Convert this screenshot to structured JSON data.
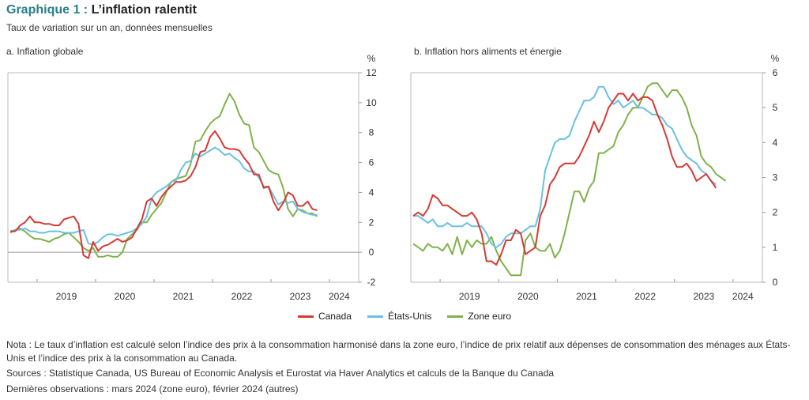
{
  "header": {
    "title_num": "Graphique 1 :",
    "title_text": " L’inflation ralentit",
    "subtitle": "Taux de variation sur un an, données mensuelles"
  },
  "legend": [
    {
      "label": "Canada",
      "color": "#d63a35"
    },
    {
      "label": "États-Unis",
      "color": "#6cc0e0"
    },
    {
      "label": "Zone euro",
      "color": "#7fb24a"
    }
  ],
  "footer": {
    "note": "Nota : Le taux d’inflation est calculé selon l’indice des prix à la consommation harmonisé dans la zone euro, l’indice de prix relatif aux dépenses de consommation des ménages aux États-Unis et l’indice des prix à la consommation au Canada.",
    "sources": "Sources : Statistique Canada, US Bureau of Economic Analysis et Eurostat via Haver Analytics et calculs de la Banque du Canada",
    "last_obs": "Dernières observations : mars 2024 (zone euro), février 2024 (autres)"
  },
  "chart_data": [
    {
      "type": "line",
      "title": "a. Inflation globale",
      "ylabel": "%",
      "ylim": [
        -2,
        12
      ],
      "yticks": [
        "-2",
        "0",
        "2",
        "4",
        "6",
        "8",
        "10",
        "12"
      ],
      "xlabels": [
        "2019",
        "2020",
        "2021",
        "2022",
        "2023",
        "2024"
      ],
      "x_start": "2018-07",
      "series": [
        {
          "name": "Canada",
          "values": [
            1.4,
            1.4,
            1.8,
            2.0,
            2.4,
            2.0,
            2.0,
            1.9,
            1.9,
            1.8,
            1.8,
            2.2,
            2.3,
            2.4,
            1.9,
            -0.2,
            -0.4,
            0.7,
            0.1,
            0.4,
            0.5,
            0.7,
            0.9,
            0.7,
            0.8,
            1.0,
            1.6,
            2.2,
            3.4,
            3.6,
            3.1,
            3.7,
            4.1,
            4.4,
            4.7,
            4.7,
            4.8,
            5.1,
            5.7,
            6.7,
            6.8,
            7.7,
            8.1,
            7.6,
            7.0,
            6.9,
            6.9,
            6.8,
            6.3,
            5.9,
            5.2,
            5.2,
            4.3,
            4.4,
            3.4,
            2.8,
            3.3,
            4.0,
            3.8,
            3.1,
            3.1,
            3.4,
            2.9,
            2.8
          ]
        },
        {
          "name": "États-Unis",
          "values": [
            1.4,
            1.5,
            1.5,
            1.6,
            1.4,
            1.4,
            1.3,
            1.3,
            1.4,
            1.4,
            1.4,
            1.3,
            1.3,
            1.3,
            1.4,
            1.5,
            0.6,
            0.5,
            0.7,
            1.0,
            1.2,
            1.2,
            1.1,
            1.2,
            1.3,
            1.4,
            1.6,
            1.9,
            2.4,
            3.6,
            4.0,
            4.2,
            4.4,
            4.7,
            4.8,
            5.5,
            6.0,
            6.1,
            6.6,
            6.4,
            6.6,
            6.8,
            7.0,
            6.8,
            6.5,
            6.6,
            6.3,
            6.1,
            5.6,
            5.4,
            5.4,
            5.0,
            4.4,
            4.4,
            3.8,
            3.2,
            3.4,
            3.3,
            3.4,
            2.9,
            2.7,
            2.6,
            2.5,
            2.5
          ]
        },
        {
          "name": "Zone euro",
          "values": [
            1.3,
            1.5,
            1.6,
            1.4,
            1.1,
            0.9,
            0.9,
            0.8,
            0.7,
            0.9,
            1.0,
            1.2,
            1.3,
            1.0,
            0.7,
            0.3,
            0.1,
            0.3,
            -0.3,
            -0.3,
            -0.2,
            -0.3,
            -0.3,
            0.0,
            0.9,
            1.2,
            1.5,
            2.0,
            2.0,
            2.5,
            2.9,
            3.3,
            4.0,
            4.7,
            4.9,
            5.0,
            5.1,
            5.9,
            7.4,
            7.5,
            8.1,
            8.6,
            8.9,
            9.1,
            9.9,
            10.6,
            10.1,
            9.2,
            8.6,
            8.5,
            7.0,
            6.7,
            6.1,
            5.5,
            5.3,
            5.2,
            4.3,
            2.9,
            2.4,
            2.9,
            2.8,
            2.6,
            2.6,
            2.4
          ]
        }
      ]
    },
    {
      "type": "line",
      "title": "b. Inflation hors aliments et énergie",
      "ylabel": "%",
      "ylim": [
        0,
        6
      ],
      "yticks": [
        "0",
        "1",
        "2",
        "3",
        "4",
        "5",
        "6"
      ],
      "xlabels": [
        "2019",
        "2020",
        "2021",
        "2022",
        "2023",
        "2024"
      ],
      "x_start": "2018-07",
      "series": [
        {
          "name": "Canada",
          "values": [
            1.9,
            2.0,
            1.9,
            2.1,
            2.5,
            2.4,
            2.2,
            2.2,
            2.1,
            2.0,
            1.9,
            1.9,
            2.0,
            1.8,
            1.4,
            0.6,
            0.6,
            0.5,
            0.8,
            1.2,
            1.2,
            1.5,
            1.4,
            0.8,
            0.9,
            1.0,
            1.9,
            2.2,
            2.8,
            3.0,
            3.3,
            3.4,
            3.4,
            3.4,
            3.6,
            3.9,
            4.2,
            4.6,
            4.3,
            4.6,
            5.0,
            5.2,
            5.4,
            5.4,
            5.2,
            5.4,
            5.2,
            5.3,
            5.3,
            5.2,
            4.8,
            4.5,
            4.1,
            3.6,
            3.3,
            3.3,
            3.4,
            3.2,
            2.9,
            3.0,
            3.1,
            2.9,
            2.7
          ]
        },
        {
          "name": "États-Unis",
          "values": [
            1.9,
            1.9,
            1.8,
            1.7,
            1.8,
            1.6,
            1.6,
            1.7,
            1.6,
            1.6,
            1.6,
            1.7,
            1.6,
            1.6,
            1.6,
            1.4,
            1.1,
            1.0,
            1.1,
            1.3,
            1.4,
            1.4,
            1.4,
            1.5,
            1.6,
            1.6,
            2.1,
            3.2,
            3.6,
            4.0,
            4.1,
            4.1,
            4.2,
            4.6,
            4.9,
            5.2,
            5.2,
            5.3,
            5.6,
            5.6,
            5.3,
            5.1,
            5.2,
            5.0,
            5.1,
            5.2,
            5.0,
            5.0,
            4.9,
            4.8,
            4.8,
            4.7,
            4.5,
            4.4,
            4.1,
            3.8,
            3.6,
            3.5,
            3.4,
            3.2,
            3.1,
            2.9,
            2.8
          ]
        },
        {
          "name": "Zone euro",
          "values": [
            1.1,
            1.0,
            0.9,
            1.1,
            1.0,
            1.0,
            0.9,
            1.1,
            0.8,
            1.3,
            0.8,
            1.2,
            1.0,
            1.2,
            1.1,
            1.1,
            1.3,
            0.9,
            0.6,
            0.4,
            0.2,
            0.2,
            0.2,
            1.2,
            1.4,
            1.0,
            0.9,
            0.9,
            1.1,
            0.7,
            0.9,
            1.4,
            2.0,
            2.6,
            2.6,
            2.3,
            2.7,
            2.9,
            3.7,
            3.7,
            3.8,
            3.9,
            4.3,
            4.5,
            4.8,
            5.0,
            5.0,
            5.3,
            5.6,
            5.7,
            5.7,
            5.5,
            5.3,
            5.5,
            5.5,
            5.3,
            5.0,
            4.5,
            4.2,
            3.6,
            3.4,
            3.3,
            3.1,
            3.0,
            2.9
          ]
        }
      ]
    }
  ]
}
